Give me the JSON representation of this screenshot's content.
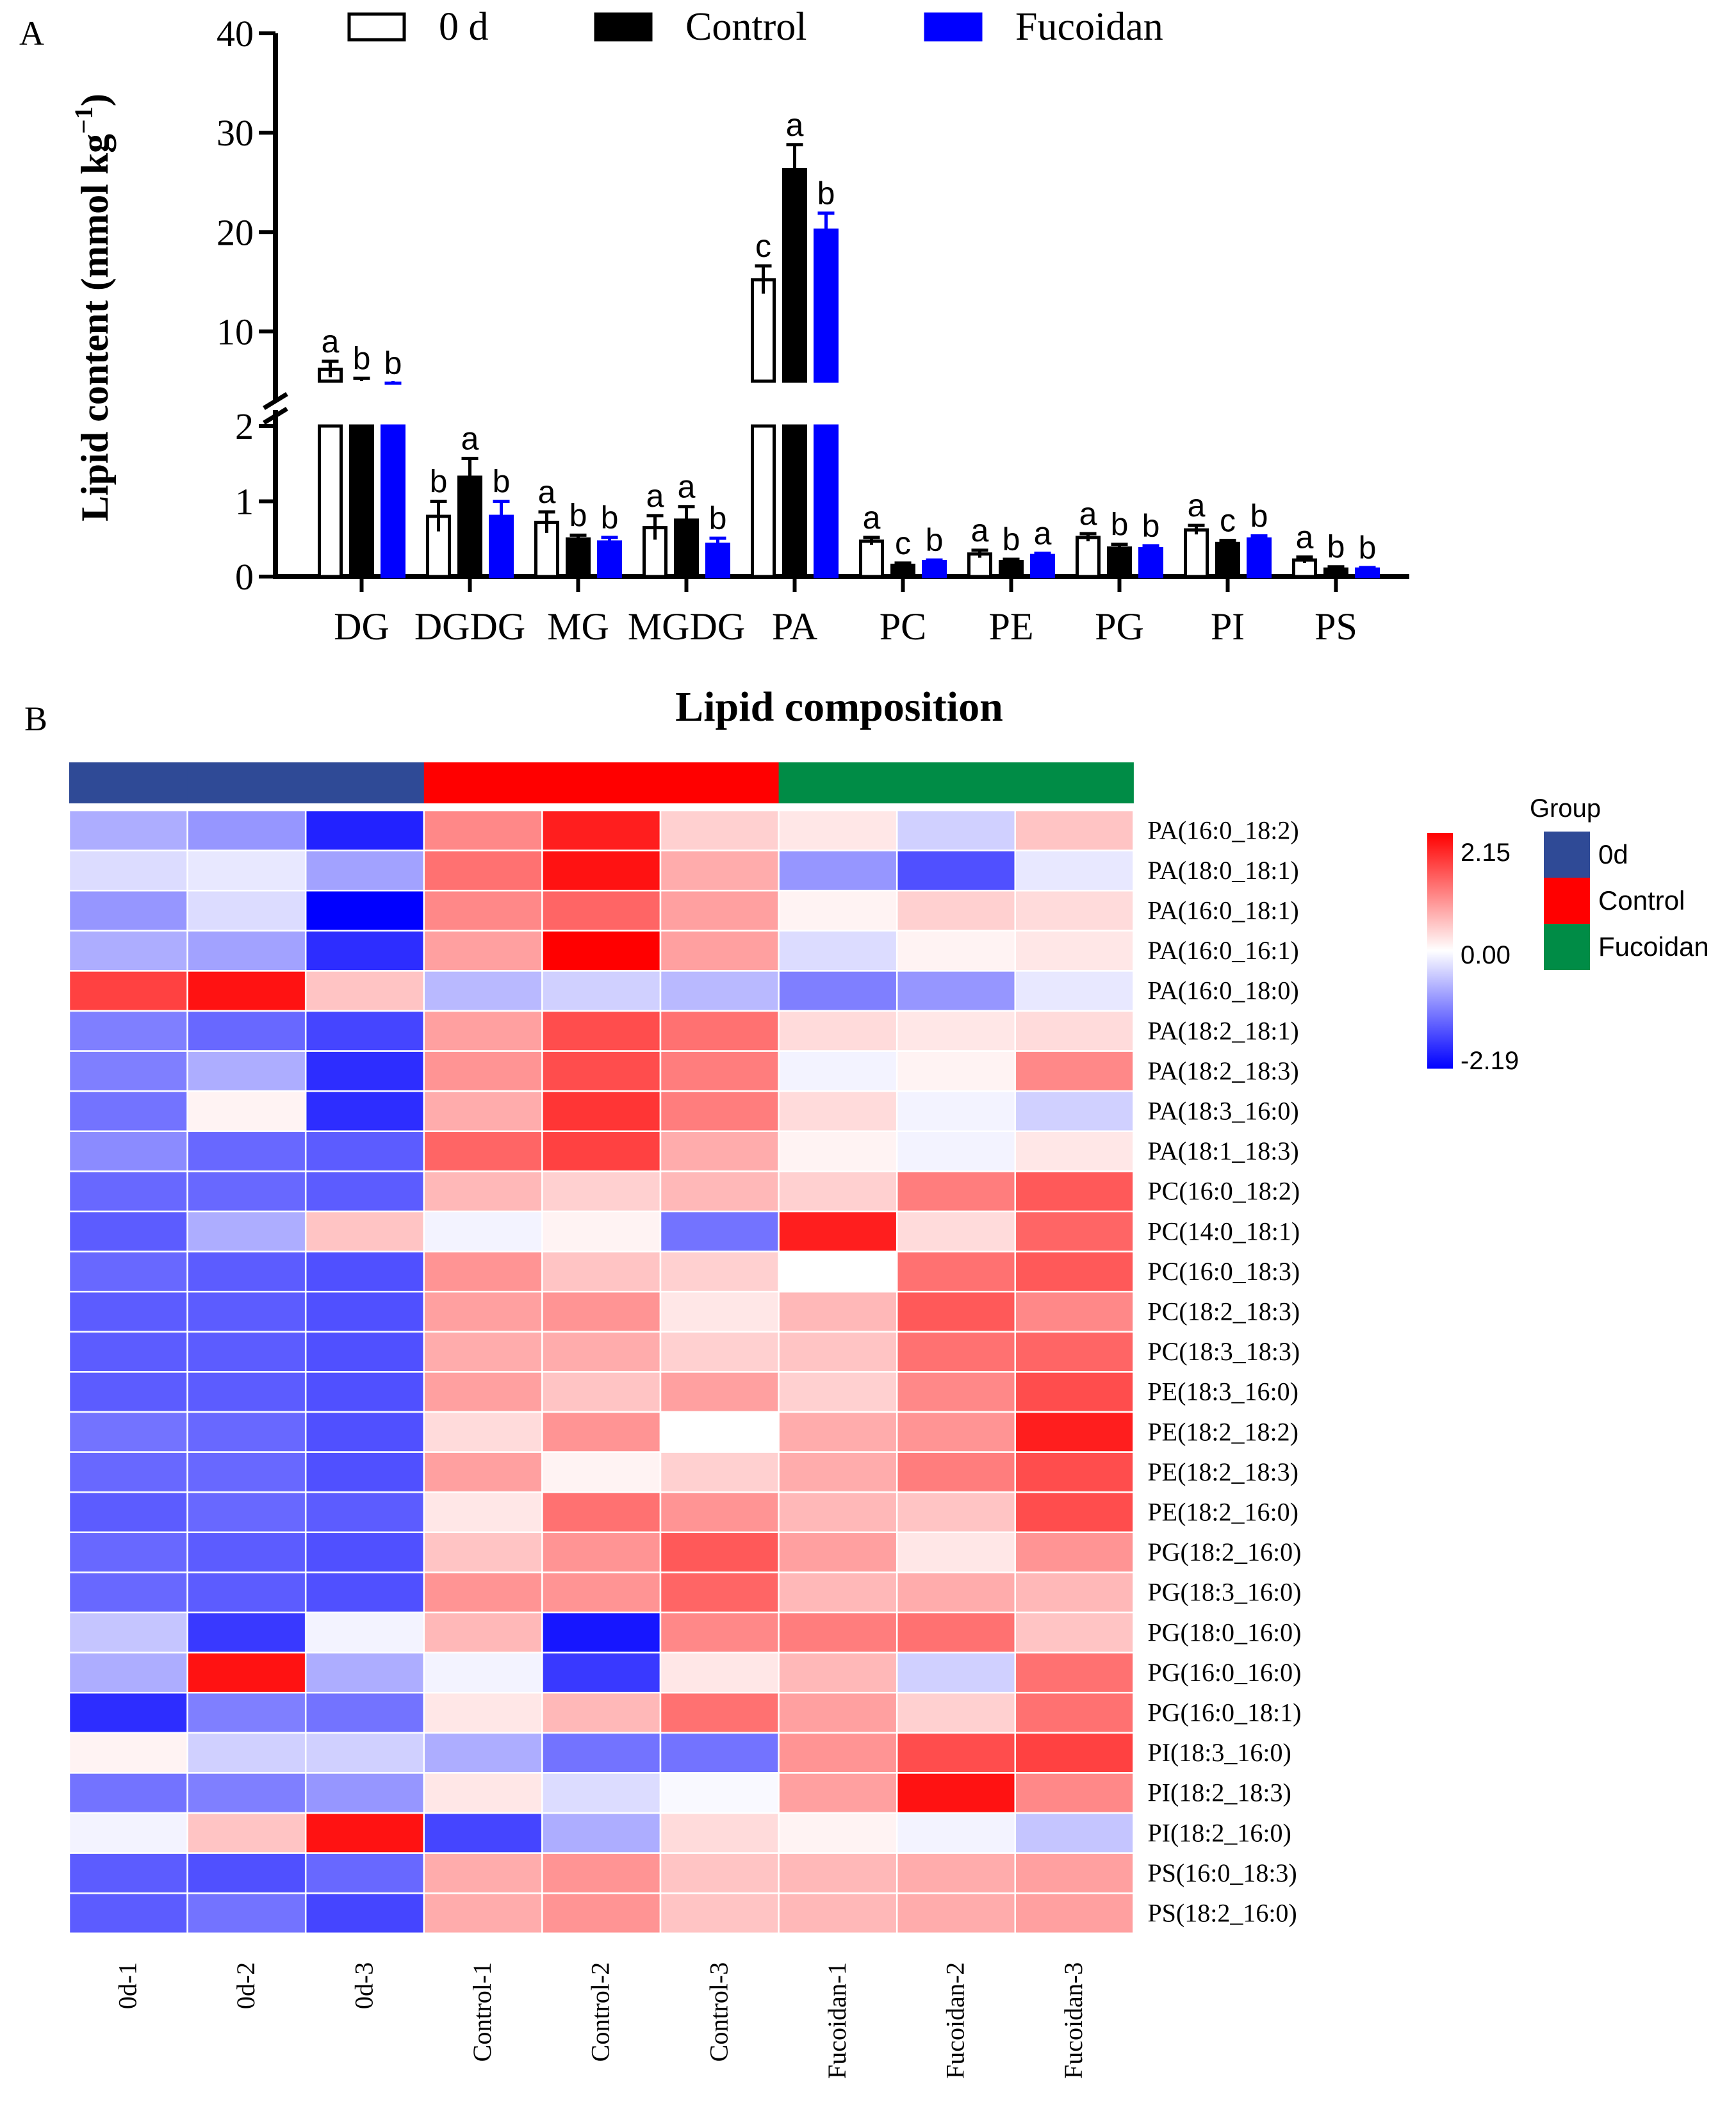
{
  "panel_labels": {
    "a": "A",
    "b": "B"
  },
  "chart_data": [
    {
      "type": "bar",
      "panel": "A",
      "title": "",
      "xlabel": "",
      "ylabel": "Lipid content (mmol kg",
      "ylabel_superscript": "−1",
      "ylabel_close": ")",
      "y_axis_break": true,
      "ylim_lower": [
        0,
        2
      ],
      "ylim_upper": [
        5,
        40
      ],
      "yticks_lower": [
        "0",
        "1",
        "2"
      ],
      "yticks_upper": [
        "10",
        "20",
        "30",
        "40"
      ],
      "categories": [
        "DG",
        "DGDG",
        "MG",
        "MGDG",
        "PA",
        "PC",
        "PE",
        "PG",
        "PI",
        "PS"
      ],
      "series": [
        {
          "name": "0 d",
          "color": "#ffffff",
          "stroke": "#000000",
          "values": [
            6.2,
            0.8,
            0.72,
            0.65,
            15.2,
            0.47,
            0.3,
            0.52,
            0.62,
            0.22
          ],
          "errors": [
            0.8,
            0.2,
            0.14,
            0.16,
            1.4,
            0.05,
            0.05,
            0.05,
            0.06,
            0.04
          ],
          "letters": [
            "a",
            "b",
            "a",
            "a",
            "c",
            "a",
            "a",
            "a",
            "a",
            "a"
          ]
        },
        {
          "name": "Control",
          "color": "#000000",
          "stroke": "#000000",
          "values": [
            4.7,
            1.32,
            0.5,
            0.75,
            26.3,
            0.15,
            0.2,
            0.38,
            0.44,
            0.1
          ],
          "errors": [
            0.6,
            0.25,
            0.05,
            0.18,
            2.5,
            0.03,
            0.03,
            0.05,
            0.04,
            0.03
          ],
          "letters": [
            "b",
            "a",
            "b",
            "a",
            "a",
            "c",
            "b",
            "b",
            "c",
            "b"
          ]
        },
        {
          "name": "Fucoidan",
          "color": "#0000ff",
          "stroke": "#0000ff",
          "values": [
            4.0,
            0.8,
            0.46,
            0.43,
            20.2,
            0.2,
            0.28,
            0.37,
            0.5,
            0.1
          ],
          "errors": [
            0.8,
            0.2,
            0.06,
            0.08,
            1.7,
            0.02,
            0.03,
            0.04,
            0.04,
            0.02
          ],
          "letters": [
            "b",
            "b",
            "b",
            "b",
            "b",
            "b",
            "a",
            "b",
            "b",
            "b"
          ]
        }
      ]
    },
    {
      "type": "heatmap",
      "panel": "B",
      "title": "Lipid composition",
      "columns": [
        "0d-1",
        "0d-2",
        "0d-3",
        "Control-1",
        "Control-2",
        "Control-3",
        "Fucoidan-1",
        "Fucoidan-2",
        "Fucoidan-3"
      ],
      "column_groups": [
        "0d",
        "0d",
        "0d",
        "Control",
        "Control",
        "Control",
        "Fucoidan",
        "Fucoidan",
        "Fucoidan"
      ],
      "rows": [
        "PA(16:0_18:2)",
        "PA(18:0_18:1)",
        "PA(16:0_18:1)",
        "PA(16:0_16:1)",
        "PA(16:0_18:0)",
        "PA(18:2_18:1)",
        "PA(18:2_18:3)",
        "PA(18:3_16:0)",
        "PA(18:1_18:3)",
        "PC(16:0_18:2)",
        "PC(14:0_18:1)",
        "PC(16:0_18:3)",
        "PC(18:2_18:3)",
        "PC(18:3_18:3)",
        "PE(18:3_16:0)",
        "PE(18:2_18:2)",
        "PE(18:2_18:3)",
        "PE(18:2_16:0)",
        "PG(18:2_16:0)",
        "PG(18:3_16:0)",
        "PG(18:0_16:0)",
        "PG(16:0_16:0)",
        "PG(16:0_18:1)",
        "PI(18:3_16:0)",
        "PI(18:2_18:3)",
        "PI(18:2_16:0)",
        "PS(16:0_18:3)",
        "PS(18:2_16:0)"
      ],
      "values": [
        [
          -0.7,
          -0.9,
          -1.9,
          1.0,
          1.9,
          0.4,
          0.2,
          -0.4,
          0.5
        ],
        [
          -0.3,
          -0.2,
          -0.8,
          1.2,
          2.0,
          0.7,
          -0.9,
          -1.5,
          -0.2
        ],
        [
          -0.9,
          -0.3,
          -2.19,
          1.0,
          1.3,
          0.8,
          0.1,
          0.4,
          0.3
        ],
        [
          -0.7,
          -0.8,
          -1.8,
          0.8,
          2.15,
          0.8,
          -0.3,
          0.1,
          0.2
        ],
        [
          1.6,
          2.0,
          0.5,
          -0.6,
          -0.4,
          -0.6,
          -1.1,
          -0.9,
          -0.2
        ],
        [
          -1.1,
          -1.3,
          -1.6,
          0.8,
          1.5,
          1.2,
          0.3,
          0.2,
          0.3
        ],
        [
          -1.1,
          -0.7,
          -1.8,
          0.9,
          1.5,
          1.1,
          -0.1,
          0.1,
          1.0
        ],
        [
          -1.2,
          0.1,
          -1.8,
          0.7,
          1.7,
          1.1,
          0.3,
          -0.1,
          -0.4
        ],
        [
          -1.0,
          -1.3,
          -1.4,
          1.3,
          1.6,
          0.7,
          0.1,
          -0.1,
          0.2
        ],
        [
          -1.3,
          -1.3,
          -1.4,
          0.6,
          0.4,
          0.6,
          0.4,
          1.1,
          1.4
        ],
        [
          -1.4,
          -0.7,
          0.5,
          -0.1,
          0.1,
          -1.2,
          1.9,
          0.3,
          1.3
        ],
        [
          -1.3,
          -1.4,
          -1.5,
          0.9,
          0.5,
          0.4,
          0.0,
          1.2,
          1.4
        ],
        [
          -1.4,
          -1.4,
          -1.5,
          0.8,
          0.9,
          0.2,
          0.6,
          1.4,
          1.0
        ],
        [
          -1.4,
          -1.4,
          -1.5,
          0.7,
          0.7,
          0.4,
          0.5,
          1.2,
          1.3
        ],
        [
          -1.4,
          -1.4,
          -1.5,
          0.8,
          0.5,
          0.8,
          0.4,
          1.0,
          1.5
        ],
        [
          -1.2,
          -1.3,
          -1.5,
          0.3,
          0.9,
          0.0,
          0.7,
          0.9,
          1.9
        ],
        [
          -1.3,
          -1.3,
          -1.5,
          0.8,
          0.1,
          0.4,
          0.7,
          1.1,
          1.5
        ],
        [
          -1.4,
          -1.3,
          -1.4,
          0.2,
          1.2,
          0.9,
          0.6,
          0.5,
          1.5
        ],
        [
          -1.3,
          -1.4,
          -1.5,
          0.5,
          0.9,
          1.4,
          0.8,
          0.2,
          0.9
        ],
        [
          -1.3,
          -1.4,
          -1.5,
          0.9,
          0.9,
          1.3,
          0.6,
          0.7,
          0.6
        ],
        [
          -0.5,
          -1.7,
          -0.1,
          0.6,
          -2.0,
          1.0,
          1.1,
          1.2,
          0.5
        ],
        [
          -0.7,
          2.0,
          -0.7,
          -0.1,
          -1.7,
          0.2,
          0.6,
          -0.4,
          1.2
        ],
        [
          -1.8,
          -1.1,
          -1.2,
          0.2,
          0.6,
          1.2,
          0.8,
          0.4,
          1.2
        ],
        [
          0.1,
          -0.4,
          -0.4,
          -0.7,
          -1.2,
          -1.2,
          0.9,
          1.5,
          1.6
        ],
        [
          -1.2,
          -1.1,
          -0.9,
          0.2,
          -0.3,
          -0.05,
          0.8,
          2.0,
          1.0
        ],
        [
          -0.1,
          0.5,
          2.0,
          -1.6,
          -0.7,
          0.3,
          0.1,
          -0.1,
          -0.5
        ],
        [
          -1.4,
          -1.5,
          -1.3,
          0.7,
          0.9,
          0.5,
          0.6,
          0.7,
          0.8
        ],
        [
          -1.4,
          -1.2,
          -1.6,
          0.7,
          0.9,
          0.5,
          0.6,
          0.7,
          0.8
        ]
      ],
      "color_scale": {
        "min": -2.19,
        "mid": 0.0,
        "max": 2.15,
        "low_color": "#0000ff",
        "mid_color": "#ffffff",
        "high_color": "#ff0000",
        "tick_labels": [
          "2.15",
          "0.00",
          "-2.19"
        ]
      },
      "group_legend": {
        "title": "Group",
        "items": [
          {
            "name": "0d",
            "color": "#2f4a96"
          },
          {
            "name": "Control",
            "color": "#ff0000"
          },
          {
            "name": "Fucoidan",
            "color": "#008c46"
          }
        ]
      }
    }
  ]
}
